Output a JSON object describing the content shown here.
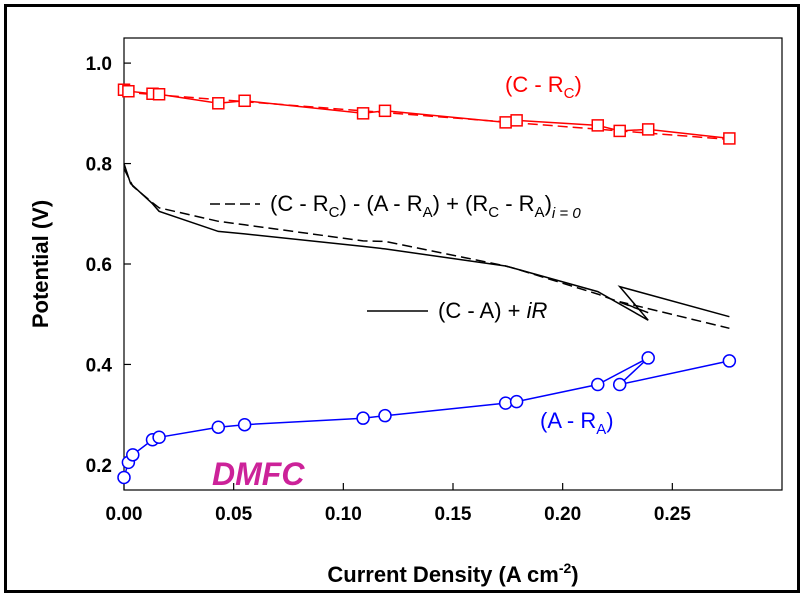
{
  "chart_data": {
    "type": "line",
    "xlabel_main": "Current Density (A cm",
    "xlabel_sup": "-2",
    "xlabel_end": ")",
    "ylabel": "Potential (V)",
    "xlim": [
      0,
      0.3
    ],
    "ylim": [
      0.15,
      1.05
    ],
    "x_ticks": [
      "0.00",
      "0.05",
      "0.10",
      "0.15",
      "0.20",
      "0.25"
    ],
    "y_ticks": [
      "0.2",
      "0.4",
      "0.6",
      "0.8",
      "1.0"
    ],
    "colors": {
      "cathode": "#ff0000",
      "anode": "#0000ff",
      "cell": "#000000",
      "brand": "#cc2299"
    },
    "brand_label": "DMFC",
    "series": [
      {
        "key": "cathode",
        "name_main": "(C - R",
        "name_sub": "C",
        "name_end": ")",
        "style": "solid+dashed",
        "marker": "square",
        "points": [
          [
            0.0,
            0.947
          ],
          [
            0.002,
            0.944
          ],
          [
            0.013,
            0.939
          ],
          [
            0.016,
            0.938
          ],
          [
            0.043,
            0.92
          ],
          [
            0.055,
            0.925
          ],
          [
            0.109,
            0.9
          ],
          [
            0.119,
            0.905
          ],
          [
            0.174,
            0.882
          ],
          [
            0.179,
            0.886
          ],
          [
            0.216,
            0.876
          ],
          [
            0.226,
            0.865
          ],
          [
            0.239,
            0.868
          ],
          [
            0.276,
            0.85
          ]
        ]
      },
      {
        "key": "anode",
        "name_main": "(A - R",
        "name_sub": "A",
        "name_end": ")",
        "style": "solid",
        "marker": "circle",
        "points": [
          [
            0.0,
            0.175
          ],
          [
            0.002,
            0.205
          ],
          [
            0.004,
            0.22
          ],
          [
            0.013,
            0.25
          ],
          [
            0.016,
            0.255
          ],
          [
            0.043,
            0.275
          ],
          [
            0.055,
            0.28
          ],
          [
            0.109,
            0.293
          ],
          [
            0.119,
            0.298
          ],
          [
            0.174,
            0.323
          ],
          [
            0.179,
            0.326
          ],
          [
            0.216,
            0.36
          ],
          [
            0.239,
            0.413
          ],
          [
            0.226,
            0.36
          ],
          [
            0.276,
            0.407
          ]
        ]
      },
      {
        "key": "cell_ir",
        "name_main": "(C - A) + ",
        "name_italic": "iR",
        "style": "solid",
        "marker": "none",
        "points": [
          [
            0.0,
            0.8
          ],
          [
            0.003,
            0.76
          ],
          [
            0.013,
            0.72
          ],
          [
            0.016,
            0.705
          ],
          [
            0.043,
            0.665
          ],
          [
            0.055,
            0.66
          ],
          [
            0.109,
            0.635
          ],
          [
            0.119,
            0.63
          ],
          [
            0.174,
            0.596
          ],
          [
            0.179,
            0.59
          ],
          [
            0.216,
            0.545
          ],
          [
            0.239,
            0.488
          ],
          [
            0.226,
            0.555
          ],
          [
            0.276,
            0.495
          ]
        ]
      },
      {
        "key": "cell_calc",
        "name_main": "(C - R",
        "name_sub1": "C",
        "name_mid1": ") - (A - R",
        "name_sub2": "A",
        "name_mid2": ") + (R",
        "name_sub3": "C",
        "name_mid3": " - R",
        "name_sub4": "A",
        "name_mid4": ")",
        "name_sub5": "i = 0",
        "style": "dashed",
        "marker": "none",
        "points": [
          [
            0.0,
            0.79
          ],
          [
            0.004,
            0.755
          ],
          [
            0.013,
            0.722
          ],
          [
            0.016,
            0.712
          ],
          [
            0.043,
            0.685
          ],
          [
            0.055,
            0.678
          ],
          [
            0.109,
            0.646
          ],
          [
            0.119,
            0.645
          ],
          [
            0.174,
            0.596
          ],
          [
            0.179,
            0.59
          ],
          [
            0.216,
            0.54
          ],
          [
            0.239,
            0.503
          ],
          [
            0.226,
            0.525
          ],
          [
            0.276,
            0.472
          ]
        ]
      }
    ]
  }
}
